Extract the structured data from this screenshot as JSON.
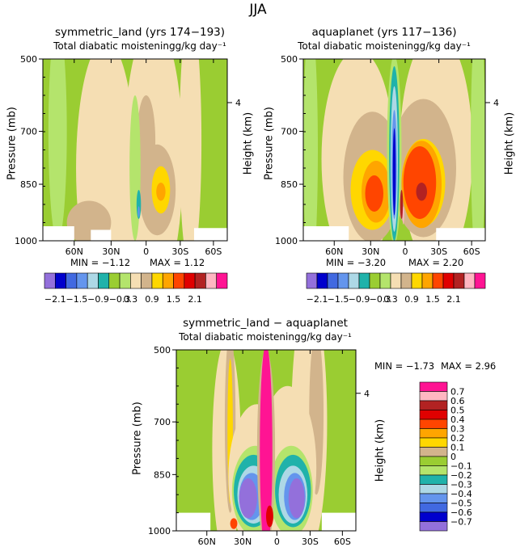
{
  "figure": {
    "title": "JJA"
  },
  "colors": {
    "diverging": [
      "#9370db",
      "#0000cd",
      "#4169e1",
      "#6495ed",
      "#add8e6",
      "#20b2aa",
      "#9acd32",
      "#b4e46c",
      "#f5deb3",
      "#d2b48c",
      "#ffd700",
      "#ffa500",
      "#ff4500",
      "#e00000",
      "#b22222",
      "#ffb6c1",
      "#ff1493"
    ]
  },
  "chart_data": [
    {
      "type": "heatmap",
      "title": "symmetric_land (yrs 174−193)",
      "subtitle": "Total diabatic moistening",
      "units": "g/kg day⁻¹",
      "ylabel": "Pressure (mb)",
      "ylabel_right": "Height (km)",
      "yticks": [
        "500",
        "700",
        "850",
        "1000"
      ],
      "yticks_right": [
        "4"
      ],
      "xticks": [
        "60N",
        "30N",
        "0",
        "30S",
        "60S"
      ],
      "min_label": "MIN =",
      "min_value": "−1.12",
      "max_label": "MAX =",
      "max_value": "1.12",
      "colorbar_labels": [
        "−2.1",
        "−1.5",
        "−0.9",
        "−0.3",
        "0.3",
        "0.9",
        "1.5",
        "2.1"
      ]
    },
    {
      "type": "heatmap",
      "title": "aquaplanet (yrs 117−136)",
      "subtitle": "Total diabatic moistening",
      "units": "g/kg day⁻¹",
      "ylabel": "Pressure (mb)",
      "ylabel_right": "Height (km)",
      "yticks": [
        "500",
        "700",
        "850",
        "1000"
      ],
      "yticks_right": [
        "4"
      ],
      "xticks": [
        "60N",
        "30N",
        "0",
        "30S",
        "60S"
      ],
      "min_label": "MIN =",
      "min_value": "−3.20",
      "max_label": "MAX =",
      "max_value": "2.20",
      "colorbar_labels": [
        "−2.1",
        "−1.5",
        "−0.9",
        "−0.3",
        "0.3",
        "0.9",
        "1.5",
        "2.1"
      ]
    },
    {
      "type": "heatmap",
      "title": "symmetric_land − aquaplanet",
      "subtitle": "Total diabatic moistening",
      "units": "g/kg day⁻¹",
      "ylabel": "Pressure (mb)",
      "ylabel_right": "Height (km)",
      "yticks": [
        "500",
        "700",
        "850",
        "1000"
      ],
      "yticks_right": [
        "4"
      ],
      "xticks": [
        "60N",
        "30N",
        "0",
        "30S",
        "60S"
      ],
      "min_label": "MIN =",
      "min_value": "−1.73",
      "max_label": "MAX =",
      "max_value": "2.96",
      "colorbar_labels": [
        "0.7",
        "0.6",
        "0.5",
        "0.4",
        "0.3",
        "0.2",
        "0.1",
        "0",
        "−0.1",
        "−0.2",
        "−0.3",
        "−0.4",
        "−0.5",
        "−0.6",
        "−0.7"
      ]
    }
  ]
}
